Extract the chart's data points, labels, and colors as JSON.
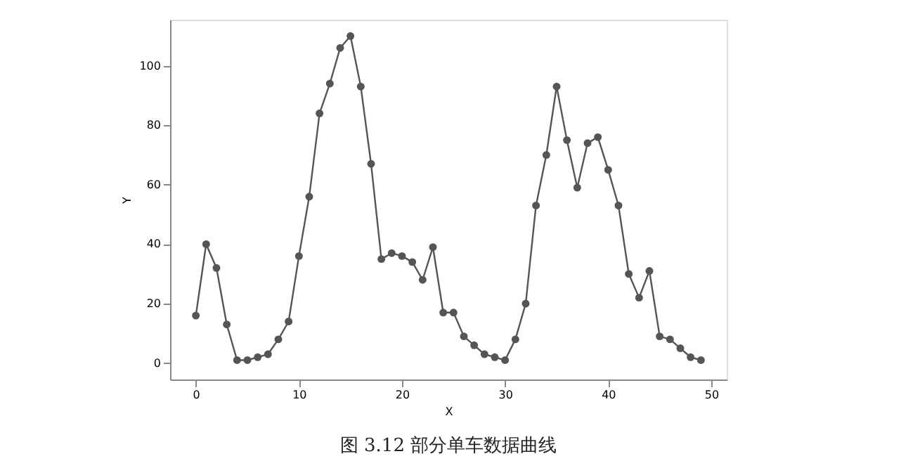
{
  "chart_data": {
    "type": "line",
    "xlabel": "X",
    "ylabel": "Y",
    "x": [
      0,
      1,
      2,
      3,
      4,
      5,
      6,
      7,
      8,
      9,
      10,
      11,
      12,
      13,
      14,
      15,
      16,
      17,
      18,
      19,
      20,
      21,
      22,
      23,
      24,
      25,
      26,
      27,
      28,
      29,
      30,
      31,
      32,
      33,
      34,
      35,
      36,
      37,
      38,
      39,
      40,
      41,
      42,
      43,
      44,
      45,
      46,
      47,
      48,
      49
    ],
    "series": [
      {
        "color": "#555555",
        "values": [
          16,
          40,
          32,
          13,
          1,
          1,
          2,
          3,
          8,
          14,
          36,
          56,
          84,
          94,
          106,
          110,
          93,
          67,
          35,
          37,
          36,
          34,
          28,
          39,
          17,
          17,
          9,
          6,
          3,
          2,
          1,
          8,
          20,
          53,
          70,
          93,
          75,
          59,
          74,
          76,
          65,
          53,
          30,
          22,
          31,
          9,
          8,
          5,
          2,
          1
        ]
      }
    ],
    "xlim": [
      -2.5,
      51.5
    ],
    "ylim": [
      -5.5,
      115.5
    ],
    "xticks": [
      0,
      10,
      20,
      30,
      40,
      50
    ],
    "yticks": [
      0,
      20,
      40,
      60,
      80,
      100
    ],
    "marker": "circle",
    "grid": false,
    "annotations": [
      "图 3.12    部分单车数据曲线"
    ]
  }
}
